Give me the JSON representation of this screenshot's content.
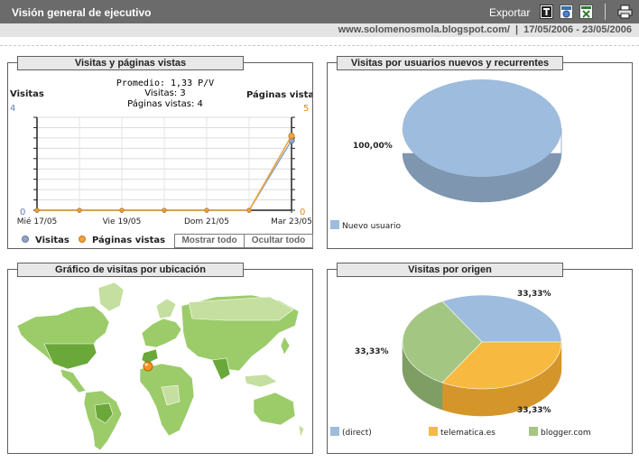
{
  "header": {
    "title": "Visión general de ejecutivo",
    "export_label": "Exportar",
    "export_icons": [
      "text-export-icon",
      "xml-export-icon",
      "excel-export-icon"
    ],
    "print_icon": "printer-icon"
  },
  "subheader": {
    "site": "www.solomenosmola.blogspot.com/",
    "separator": "|",
    "date_range": "17/05/2006 - 23/05/2006"
  },
  "visits_panel": {
    "title": "Visitas y páginas vistas",
    "left_axis_label": "Visitas",
    "right_axis_label": "Páginas vistas",
    "stats": {
      "avg": "Promedio: 1,33 P/V",
      "visits": "Visitas: 3",
      "pageviews": "Páginas vistas: 4"
    },
    "left_top": "4",
    "left_bottom": "0",
    "right_top": "5",
    "right_bottom": "0",
    "x_ticks": [
      "Mié 17/05",
      "Vie 19/05",
      "Dom 21/05",
      "Mar 23/05"
    ],
    "legend": [
      "Visitas",
      "Páginas vistas"
    ],
    "show_all": "Mostrar todo",
    "hide_all": "Ocultar todo",
    "colors": {
      "visits": "#8ea6c4",
      "pageviews": "#f0a341"
    }
  },
  "new_returning_panel": {
    "title": "Visitas por usuarios nuevos y recurrentes",
    "label": "100,00%",
    "legend": [
      "Nuevo usuario"
    ],
    "colors": {
      "top": "#9ebcdd",
      "side": "#7e96b0"
    }
  },
  "map_panel": {
    "title": "Gráfico de visitas por ubicación",
    "colors": {
      "ocean": "#ffffff",
      "land_light": "#c4dfa0",
      "land_mid": "#9ccc6a",
      "land_dark": "#6aa83a",
      "marker": "#f7941d"
    }
  },
  "origin_panel": {
    "title": "Visitas por origen",
    "labels": [
      "33,33%",
      "33,33%",
      "33,33%"
    ],
    "legend": [
      "(direct)",
      "telematica.es",
      "blogger.com"
    ],
    "colors": [
      "#9ebcdd",
      "#f8b940",
      "#a4c683"
    ]
  },
  "chart_data": [
    {
      "type": "line",
      "x": [
        "17/05",
        "18/05",
        "19/05",
        "20/05",
        "21/05",
        "22/05",
        "23/05"
      ],
      "x_tick_labels": [
        "Mié 17/05",
        "Vie 19/05",
        "Dom 21/05",
        "Mar 23/05"
      ],
      "series": [
        {
          "name": "Visitas",
          "axis": "left",
          "values": [
            0,
            0,
            0,
            0,
            0,
            0,
            3
          ]
        },
        {
          "name": "Páginas vistas",
          "axis": "right",
          "values": [
            0,
            0,
            0,
            0,
            0,
            0,
            4
          ]
        }
      ],
      "ylim_left": [
        0,
        4
      ],
      "ylim_right": [
        0,
        5
      ],
      "grid": true,
      "legend_position": "bottom"
    },
    {
      "type": "pie",
      "slices": [
        {
          "label": "Nuevo usuario",
          "value": 100.0
        }
      ],
      "data_labels": [
        "100,00%"
      ],
      "legend_position": "bottom-left"
    },
    {
      "type": "pie",
      "slices": [
        {
          "label": "(direct)",
          "value": 33.33
        },
        {
          "label": "telematica.es",
          "value": 33.33
        },
        {
          "label": "blogger.com",
          "value": 33.33
        }
      ],
      "data_labels": [
        "33,33%",
        "33,33%",
        "33,33%"
      ],
      "legend_position": "bottom"
    }
  ]
}
